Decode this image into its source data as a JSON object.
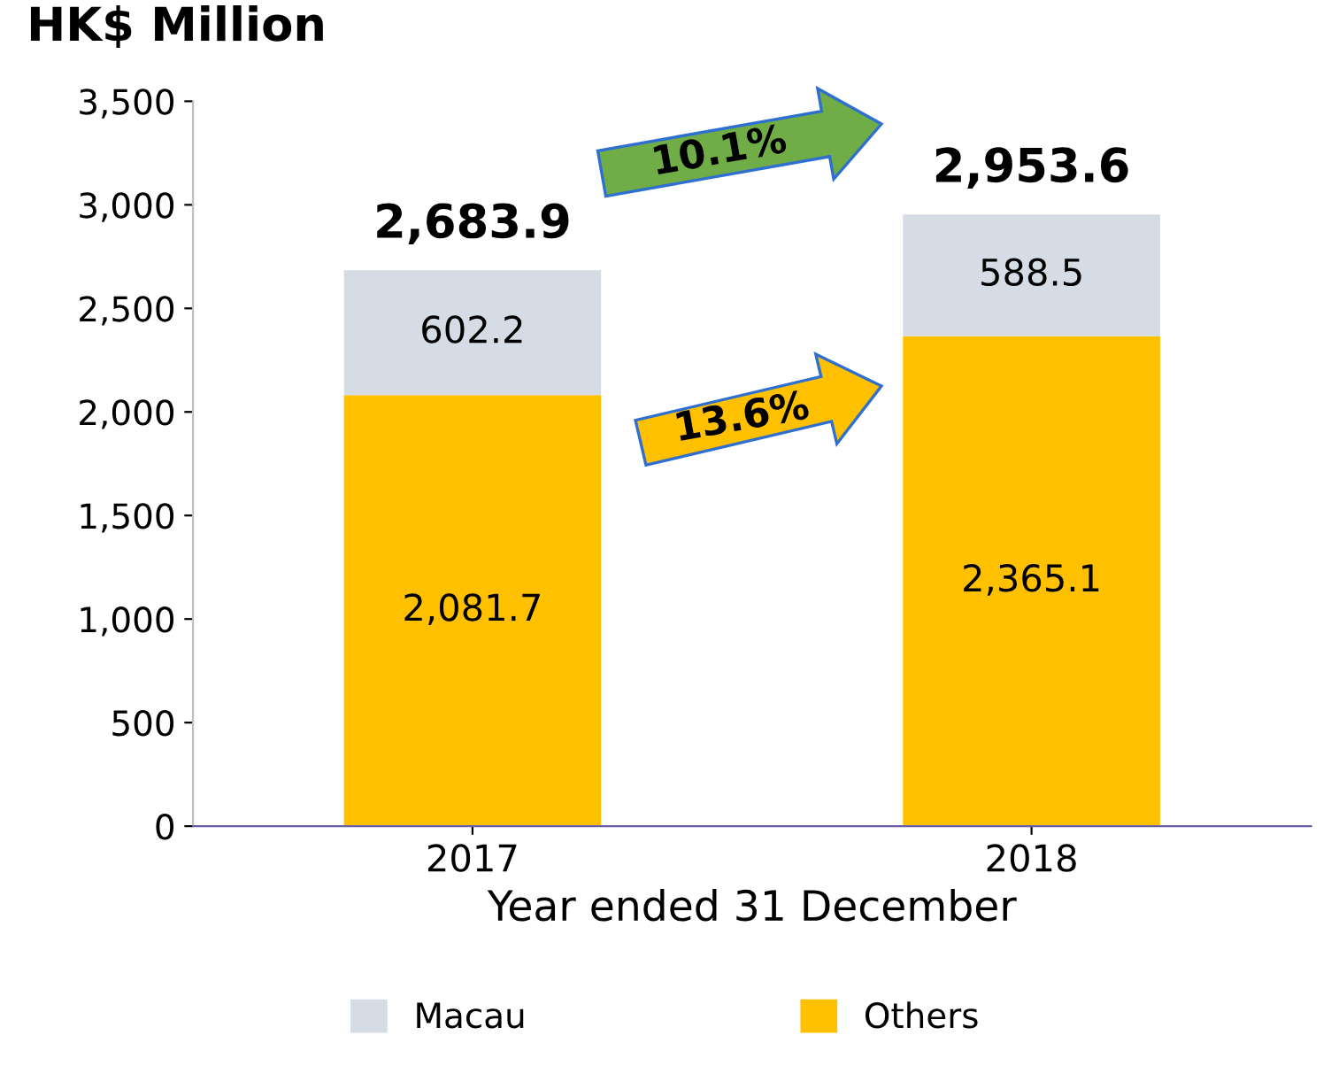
{
  "chart_data": {
    "type": "bar",
    "stacked": true,
    "title": "HK$ Million",
    "xlabel": "Year ended 31 December",
    "categories": [
      "2017",
      "2018"
    ],
    "series": [
      {
        "name": "Others",
        "color": "#ffc000",
        "values": [
          2081.7,
          2365.1
        ],
        "value_labels": [
          "2,081.7",
          "2,365.1"
        ]
      },
      {
        "name": "Macau",
        "color": "#d6dce5",
        "values": [
          602.2,
          588.5
        ],
        "value_labels": [
          "602.2",
          "588.5"
        ]
      }
    ],
    "totals": [
      "2,683.9",
      "2,953.6"
    ],
    "annotations": [
      "10.1%",
      "13.6%"
    ],
    "ylim": [
      0,
      3500
    ],
    "yticks": [
      0,
      500,
      {
        "value": 1000,
        "label": "1,000"
      },
      {
        "value": 1500,
        "label": "1,500"
      },
      {
        "value": 2000,
        "label": "2,000"
      },
      {
        "value": 2500,
        "label": "2,500"
      },
      {
        "value": 3000,
        "label": "3,000"
      },
      {
        "value": 3500,
        "label": "3,500"
      }
    ],
    "grid": false,
    "legend": "bottom"
  }
}
